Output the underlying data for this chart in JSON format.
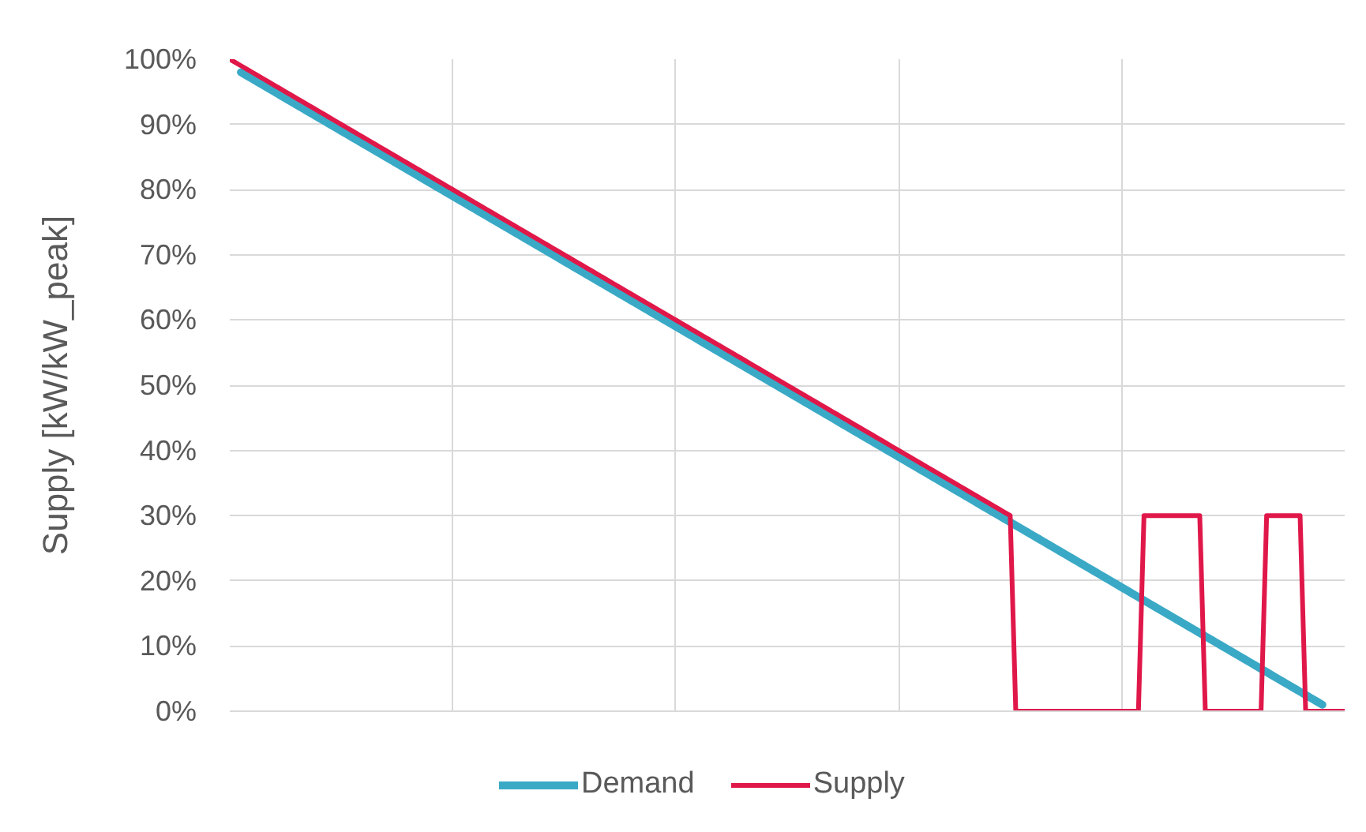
{
  "chart_data": {
    "type": "line",
    "ylabel": "Supply [kW/kW_peak]",
    "categories": [
      null,
      null,
      null,
      null,
      null,
      null,
      null,
      null,
      null,
      null,
      null,
      null,
      null,
      null,
      null,
      null,
      null,
      null,
      null,
      null,
      null,
      null,
      null,
      null,
      null,
      null,
      null,
      null,
      null,
      null,
      null,
      null,
      null,
      null,
      null,
      null,
      null,
      null,
      null,
      null,
      null,
      null,
      null,
      null,
      null,
      null,
      null,
      null,
      null,
      null,
      null,
      null,
      null,
      null,
      null,
      null,
      null,
      null,
      null,
      null,
      null,
      null,
      null,
      null,
      null,
      null,
      null,
      null,
      null,
      null,
      null,
      null,
      null,
      null,
      null,
      null,
      null,
      null,
      null,
      null,
      null,
      null,
      null,
      null,
      null,
      null,
      null,
      null,
      null,
      null,
      null,
      null,
      null,
      null,
      null,
      null,
      null,
      null,
      null,
      null,
      null,
      null,
      null,
      null,
      null,
      null,
      null,
      null,
      null,
      null,
      null,
      null,
      null,
      null,
      null,
      null,
      null,
      null,
      null,
      null,
      null,
      null,
      null,
      null,
      null,
      null,
      null,
      null,
      null,
      null,
      null,
      null,
      null,
      null,
      null,
      null,
      null,
      null,
      null,
      null,
      null,
      null,
      null,
      null,
      null,
      null,
      null,
      null,
      null,
      null,
      null,
      null,
      null,
      null,
      null,
      null,
      null,
      null,
      null,
      null,
      null,
      null,
      null,
      null,
      null,
      null,
      null,
      null,
      null,
      null,
      null,
      null,
      null,
      null,
      null,
      null,
      null,
      null,
      null,
      null,
      null,
      null,
      null,
      null,
      null,
      null,
      null,
      null,
      null,
      null,
      null,
      null,
      null,
      null,
      null,
      null,
      null,
      null,
      null,
      null,
      null
    ],
    "ylim": [
      0,
      100
    ],
    "yticks": [
      {
        "value": 0,
        "label": "0%"
      },
      {
        "value": 10,
        "label": "10%"
      },
      {
        "value": 20,
        "label": "20%"
      },
      {
        "value": 30,
        "label": "30%"
      },
      {
        "value": 40,
        "label": "40%"
      },
      {
        "value": 50,
        "label": "50%"
      },
      {
        "value": 60,
        "label": "60%"
      },
      {
        "value": 70,
        "label": "70%"
      },
      {
        "value": 80,
        "label": "80%"
      },
      {
        "value": 90,
        "label": "90%"
      },
      {
        "value": 100,
        "label": "100%"
      }
    ],
    "grid": true,
    "legend": "bottom",
    "series": [
      {
        "name": "Demand",
        "color": "#3aa9c6",
        "values": [
          null,
          null,
          98,
          97.5,
          97,
          96.5,
          96,
          95.5,
          95,
          94.5,
          94,
          93.5,
          93,
          92.5,
          92,
          91.5,
          91,
          90.5,
          90,
          89.5,
          89,
          88.5,
          88,
          87.5,
          87,
          86.5,
          86,
          85.5,
          85,
          84.5,
          84,
          83.5,
          83,
          82.5,
          82,
          81.5,
          81,
          80.5,
          80,
          79.5,
          79,
          78.5,
          78,
          77.5,
          77,
          76.5,
          76,
          75.5,
          75,
          74.5,
          74,
          73.5,
          73,
          72.5,
          72,
          71.5,
          71,
          70.5,
          70,
          69.5,
          69,
          68.5,
          68,
          67.5,
          67,
          66.5,
          66,
          65.5,
          65,
          64.5,
          64,
          63.5,
          63,
          62.5,
          62,
          61.5,
          61,
          60.5,
          60,
          59.5,
          59,
          58.5,
          58,
          57.5,
          57,
          56.5,
          56,
          55.5,
          55,
          54.5,
          54,
          53.5,
          53,
          52.5,
          52,
          51.5,
          51,
          50.5,
          50,
          49.5,
          49,
          48.5,
          48,
          47.5,
          47,
          46.5,
          46,
          45.5,
          45,
          44.5,
          44,
          43.5,
          43,
          42.5,
          42,
          41.5,
          41,
          40.5,
          40,
          39.5,
          39,
          38.5,
          38,
          37.5,
          37,
          36.5,
          36,
          35.5,
          35,
          34.5,
          34,
          33.5,
          33,
          32.5,
          32,
          31.5,
          31,
          30.5,
          30,
          29.5,
          29,
          28.5,
          28,
          27.5,
          27,
          26.5,
          26,
          25.5,
          25,
          24.5,
          24,
          23.5,
          23,
          22.5,
          22,
          21.5,
          21,
          20.5,
          20,
          19.5,
          19,
          18.5,
          18,
          17.5,
          17,
          16.5,
          16,
          15.5,
          15,
          14.5,
          14,
          13.5,
          13,
          12.5,
          12,
          11.5,
          11,
          10.5,
          10,
          9.5,
          9,
          8.5,
          8,
          7.5,
          7,
          6.5,
          6,
          5.5,
          5,
          4.5,
          4,
          3.5,
          3,
          2.5,
          2,
          1.5,
          1,
          null,
          null,
          null,
          null
        ]
      },
      {
        "name": "Supply",
        "color": "#e0184a",
        "values": [
          100,
          99.5,
          99,
          98.5,
          98,
          97.5,
          97,
          96.5,
          96,
          95.5,
          95,
          94.5,
          94,
          93.5,
          93,
          92.5,
          92,
          91.5,
          91,
          90.5,
          90,
          89.5,
          89,
          88.5,
          88,
          87.5,
          87,
          86.5,
          86,
          85.5,
          85,
          84.5,
          84,
          83.5,
          83,
          82.5,
          82,
          81.5,
          81,
          80.5,
          80,
          79.5,
          79,
          78.5,
          78,
          77.5,
          77,
          76.5,
          76,
          75.5,
          75,
          74.5,
          74,
          73.5,
          73,
          72.5,
          72,
          71.5,
          71,
          70.5,
          70,
          69.5,
          69,
          68.5,
          68,
          67.5,
          67,
          66.5,
          66,
          65.5,
          65,
          64.5,
          64,
          63.5,
          63,
          62.5,
          62,
          61.5,
          61,
          60.5,
          60,
          59.5,
          59,
          58.5,
          58,
          57.5,
          57,
          56.5,
          56,
          55.5,
          55,
          54.5,
          54,
          53.5,
          53,
          52.5,
          52,
          51.5,
          51,
          50.5,
          50,
          49.5,
          49,
          48.5,
          48,
          47.5,
          47,
          46.5,
          46,
          45.5,
          45,
          44.5,
          44,
          43.5,
          43,
          42.5,
          42,
          41.5,
          41,
          40.5,
          40,
          39.5,
          39,
          38.5,
          38,
          37.5,
          37,
          36.5,
          36,
          35.5,
          35,
          34.5,
          34,
          33.5,
          33,
          32.5,
          32,
          31.5,
          31,
          30.5,
          30,
          0,
          0,
          0,
          0,
          0,
          0,
          0,
          0,
          0,
          0,
          0,
          0,
          0,
          0,
          0,
          0,
          0,
          0,
          0,
          0,
          0,
          0,
          0,
          30,
          30,
          30,
          30,
          30,
          30,
          30,
          30,
          30,
          30,
          30,
          0,
          0,
          0,
          0,
          0,
          0,
          0,
          0,
          0,
          0,
          0,
          30,
          30,
          30,
          30,
          30,
          30,
          30,
          0,
          0,
          0,
          0,
          0,
          0,
          0,
          0
        ]
      }
    ]
  }
}
